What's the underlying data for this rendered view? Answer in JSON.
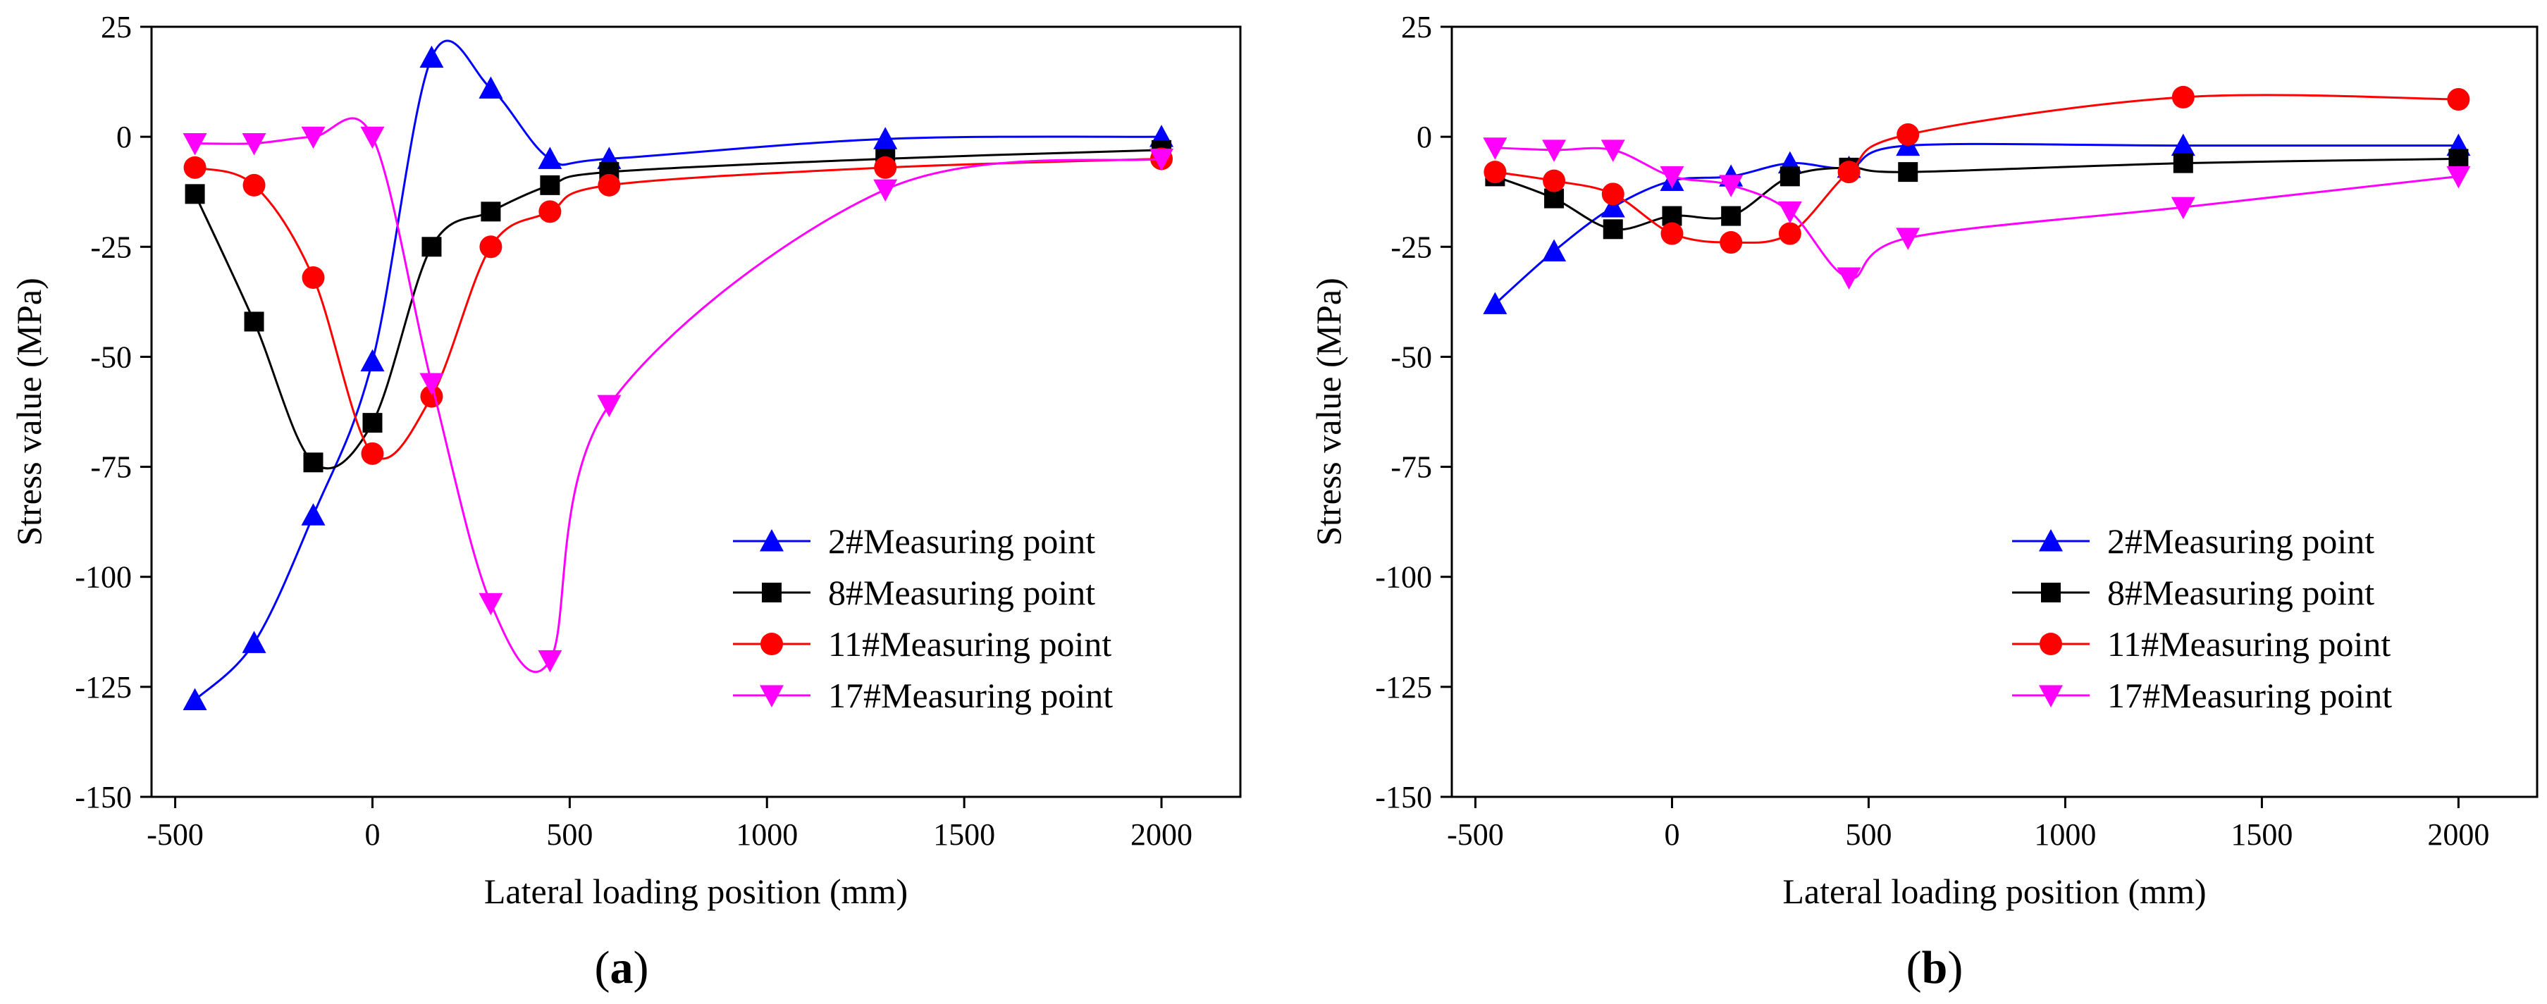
{
  "figure": {
    "panels": [
      "a",
      "b"
    ]
  },
  "chart_data": [
    {
      "type": "line",
      "panel_label": "(a)",
      "title": "",
      "xlabel": "Lateral loading position (mm)",
      "ylabel": "Stress value (MPa)",
      "xlim": [
        -560,
        2200
      ],
      "ylim": [
        -150,
        25
      ],
      "xticks": [
        -500,
        0,
        500,
        1000,
        1500,
        2000
      ],
      "yticks": [
        25,
        0,
        -25,
        -50,
        -75,
        -100,
        -125,
        -150
      ],
      "grid": false,
      "legend_position": "bottom-right",
      "smooth": true,
      "x": [
        -450,
        -300,
        -150,
        0,
        150,
        300,
        450,
        600,
        1300,
        2000
      ],
      "series": [
        {
          "name": "2#Measuring point",
          "color": "#0000ff",
          "marker": "triangle-up",
          "values": [
            -128,
            -115,
            -86,
            -51,
            18,
            11,
            -5,
            -5,
            -0.5,
            0
          ]
        },
        {
          "name": "8#Measuring point",
          "color": "#000000",
          "marker": "square",
          "values": [
            -13,
            -42,
            -74,
            -65,
            -25,
            -17,
            -11,
            -8,
            -5,
            -3
          ]
        },
        {
          "name": "11#Measuring point",
          "color": "#ff0000",
          "marker": "circle",
          "values": [
            -7,
            -11,
            -32,
            -72,
            -59,
            -25,
            -17,
            -11,
            -7,
            -5
          ]
        },
        {
          "name": "17#Measuring point",
          "color": "#ff00ff",
          "marker": "triangle-down",
          "values": [
            -1.5,
            -1.5,
            0,
            0,
            -56,
            -106,
            -119,
            -61,
            -12,
            -5
          ]
        }
      ]
    },
    {
      "type": "line",
      "panel_label": "(b)",
      "title": "",
      "xlabel": "Lateral loading position (mm)",
      "ylabel": "Stress value (MPa)",
      "xlim": [
        -560,
        2200
      ],
      "ylim": [
        -150,
        25
      ],
      "xticks": [
        -500,
        0,
        500,
        1000,
        1500,
        2000
      ],
      "yticks": [
        25,
        0,
        -25,
        -50,
        -75,
        -100,
        -125,
        -150
      ],
      "grid": false,
      "legend_position": "bottom-right",
      "smooth": true,
      "x": [
        -450,
        -300,
        -150,
        0,
        150,
        300,
        450,
        600,
        1300,
        2000
      ],
      "series": [
        {
          "name": "2#Measuring point",
          "color": "#0000ff",
          "marker": "triangle-up",
          "values": [
            -38,
            -26,
            -16,
            -10,
            -9,
            -6,
            -7,
            -2,
            -2,
            -2
          ]
        },
        {
          "name": "8#Measuring point",
          "color": "#000000",
          "marker": "square",
          "values": [
            -9,
            -14,
            -21,
            -18,
            -18,
            -9,
            -7,
            -8,
            -6,
            -5
          ]
        },
        {
          "name": "11#Measuring point",
          "color": "#ff0000",
          "marker": "circle",
          "values": [
            -8,
            -10,
            -13,
            -22,
            -24,
            -22,
            -8,
            0.5,
            9,
            8.5
          ]
        },
        {
          "name": "17#Measuring point",
          "color": "#ff00ff",
          "marker": "triangle-down",
          "values": [
            -2.5,
            -3,
            -3,
            -9,
            -11,
            -17,
            -32,
            -23,
            -16,
            -9
          ]
        }
      ]
    }
  ]
}
